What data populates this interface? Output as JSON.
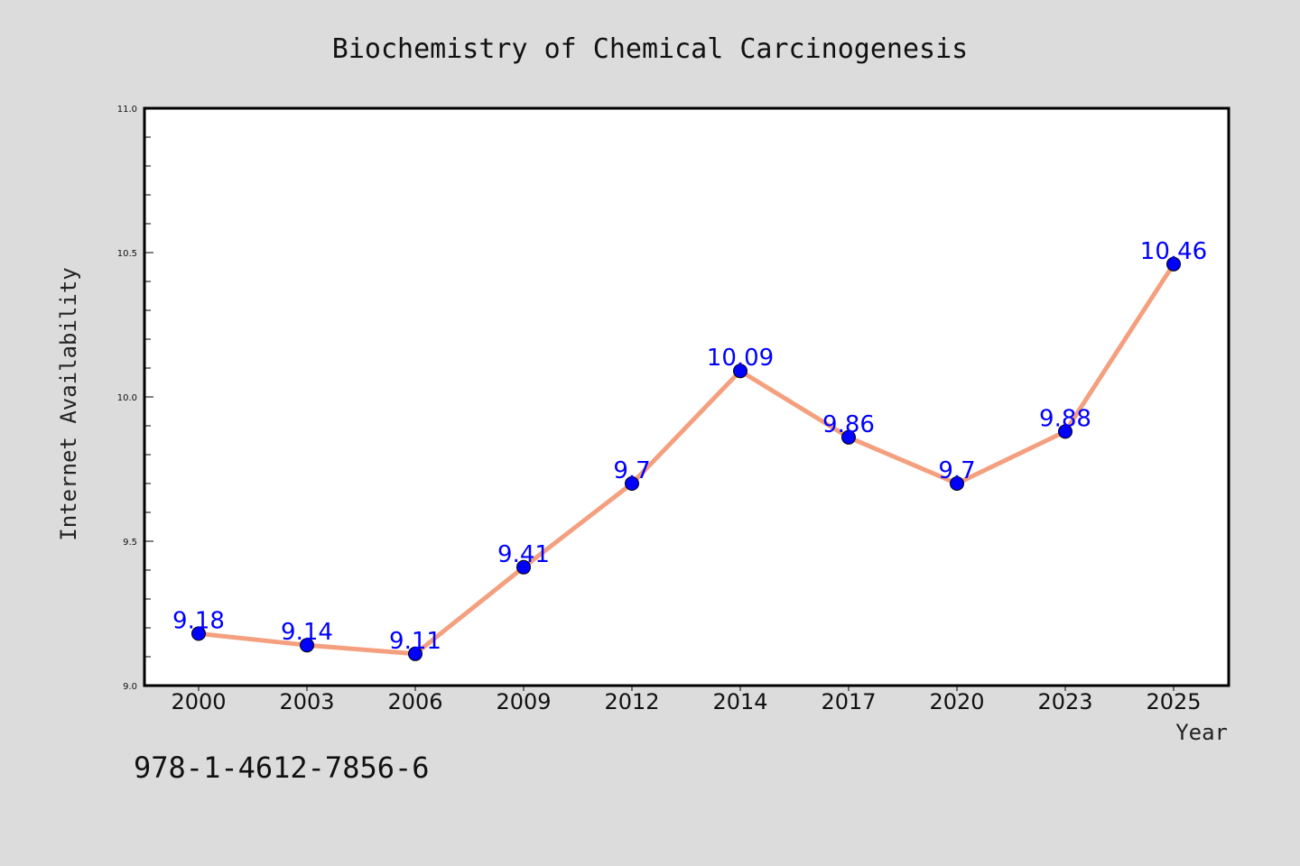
{
  "colors": {
    "background": "#dcdcdc",
    "plot_background": "#ffffff",
    "line": "#f4a07f",
    "marker": "#0000ff",
    "data_label": "#0000ff"
  },
  "footer": {
    "isbn": "978-1-4612-7856-6"
  },
  "chart_data": {
    "type": "line",
    "title": "Biochemistry of Chemical Carcinogenesis",
    "xlabel": "Year",
    "ylabel": "Internet Availability",
    "categories": [
      "2000",
      "2003",
      "2006",
      "2009",
      "2012",
      "2014",
      "2017",
      "2020",
      "2023",
      "2025"
    ],
    "series": [
      {
        "values": [
          9.18,
          9.14,
          9.11,
          9.41,
          9.7,
          10.09,
          9.86,
          9.7,
          9.88,
          10.46
        ],
        "labels": [
          "9.18",
          "9.14",
          "9.11",
          "9.41",
          "9.7",
          "10.09",
          "9.86",
          "9.7",
          "9.88",
          "10.46"
        ]
      }
    ],
    "ylim": [
      9.0,
      11.0
    ],
    "yticks": [
      "9.0",
      "9.5",
      "10.0",
      "10.5",
      "11.0"
    ],
    "grid": false,
    "legend": "none"
  }
}
